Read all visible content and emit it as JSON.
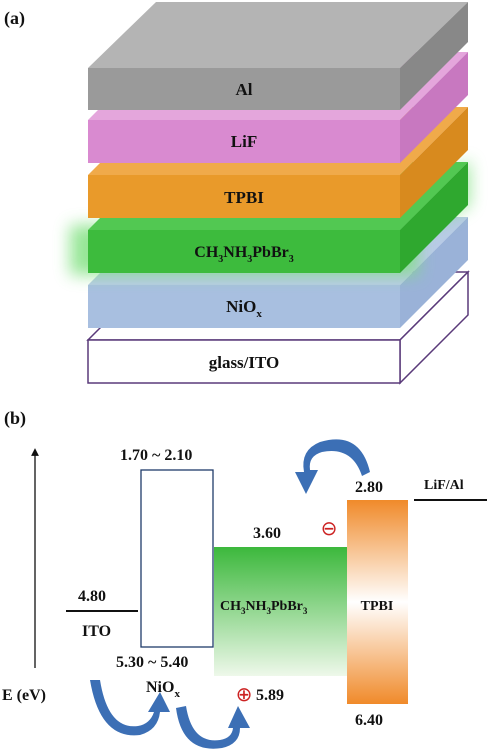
{
  "panel_a": {
    "label": "(a)",
    "layers": [
      {
        "id": "al",
        "text": "Al",
        "color": "#9a9a9a"
      },
      {
        "id": "lif",
        "text": "LiF",
        "color": "#d98ad0"
      },
      {
        "id": "tpbi",
        "text": "TPBI",
        "color": "#e99a2a"
      },
      {
        "id": "perovskite",
        "text_main": "CH",
        "sub1": "3",
        "text_mid": "NH",
        "sub2": "3",
        "text_end": "PbBr",
        "sub3": "3",
        "color": "#3dbb3d",
        "glow": "#7de07d"
      },
      {
        "id": "niox",
        "text_main": "NiO",
        "sub": "x",
        "color": "#a8bfe0"
      },
      {
        "id": "glass",
        "text": "glass/ITO",
        "color": "#ffffff",
        "edge": "#5a3a7a"
      }
    ]
  },
  "panel_b": {
    "label": "(b)",
    "axis_label": "E (eV)",
    "ito": {
      "value": "4.80",
      "name": "ITO"
    },
    "niox": {
      "top": "1.70 ~ 2.10",
      "bottom": "5.30 ~ 5.40",
      "name_main": "NiO",
      "name_sub": "x"
    },
    "perovskite": {
      "top": "3.60",
      "name_main": "CH",
      "s1": "3",
      "n2": "NH",
      "s2": "3",
      "n3": "PbBr",
      "s3": "3",
      "hole_level": "5.89"
    },
    "tpbi": {
      "top": "2.80",
      "bottom": "6.40",
      "name": "TPBI"
    },
    "lif_al": {
      "name": "LiF/Al"
    },
    "electron_symbol": "⊖",
    "hole_symbol": "⊕",
    "colors": {
      "arrow": "#3c6fb5",
      "perovskite_top": "#3cb83c",
      "perovskite_bottom": "#eaf7e6",
      "tpbi_orange": "#f08a2a",
      "charge_red": "#cc2222"
    }
  }
}
